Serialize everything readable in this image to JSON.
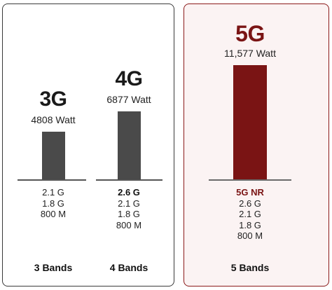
{
  "chart_data": {
    "type": "bar",
    "unit": "Watt",
    "colors": {
      "legacy_bar": "#4a4a4a",
      "nr_bar": "#7a1414",
      "nr_text": "#7a1414"
    },
    "ylim": [
      0,
      12000
    ],
    "columns": [
      {
        "generation": "3G",
        "value": 4808,
        "watt_label": "4808 Watt",
        "bands": [
          "2.1 G",
          "1.8 G",
          "800 M"
        ],
        "bold_band": -1,
        "band_count": "3 Bands"
      },
      {
        "generation": "4G",
        "value": 6877,
        "watt_label": "6877 Watt",
        "bands": [
          "2.6 G",
          "2.1 G",
          "1.8 G",
          "800 M"
        ],
        "bold_band": 0,
        "band_count": "4 Bands"
      },
      {
        "generation": "5G",
        "value": 11577,
        "watt_label": "11,577 Watt",
        "bands": [
          "5G NR",
          "2.6 G",
          "2.1 G",
          "1.8 G",
          "800 M"
        ],
        "bold_band": 0,
        "band_count": "5 Bands"
      }
    ]
  }
}
